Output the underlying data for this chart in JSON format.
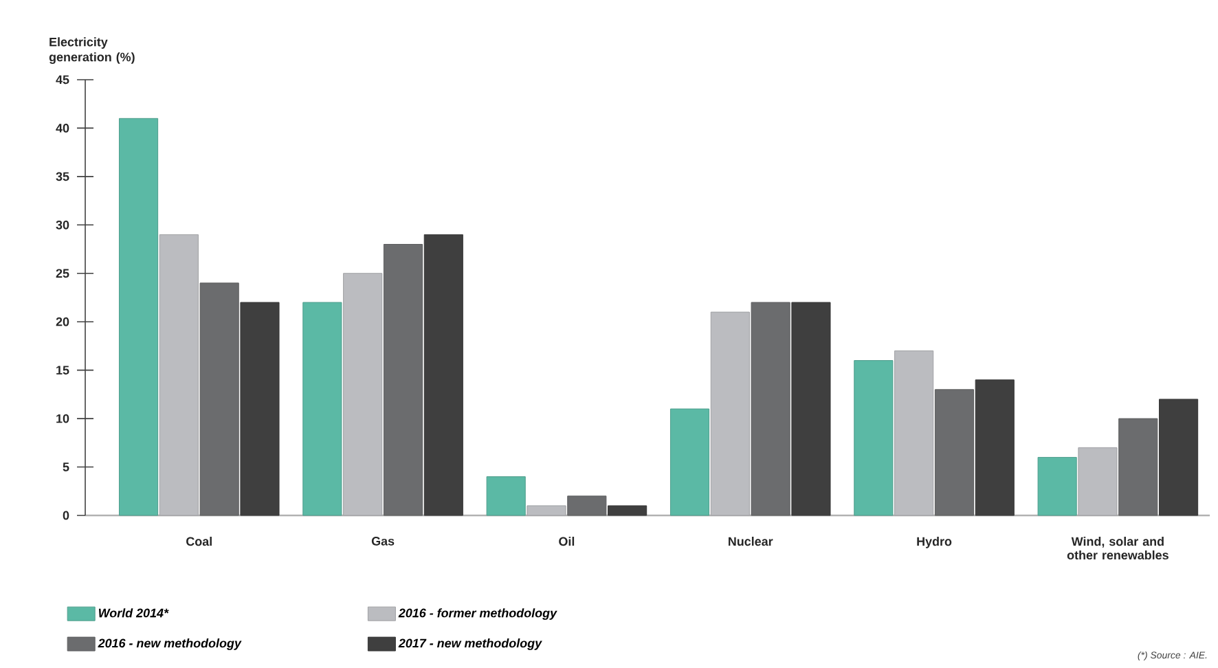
{
  "chart_data": {
    "type": "bar",
    "ylabel": "Electricity generation (%)",
    "categories": [
      "Coal",
      "Gas",
      "Oil",
      "Nuclear",
      "Hydro",
      "Wind, solar and other renewables"
    ],
    "series": [
      {
        "name": "World 2014*",
        "color": "#5bb9a5",
        "values": [
          41,
          22,
          4,
          11,
          16,
          6
        ]
      },
      {
        "name": "2016 - former methodology",
        "color": "#bbbcc0",
        "values": [
          29,
          25,
          1,
          21,
          17,
          7
        ]
      },
      {
        "name": "2016 - new methodology",
        "color": "#6b6c6e",
        "values": [
          24,
          28,
          2,
          22,
          13,
          10
        ]
      },
      {
        "name": "2017 - new methodology",
        "color": "#3f3f3f",
        "values": [
          22,
          29,
          1,
          22,
          14,
          12
        ]
      }
    ],
    "ylim": [
      0,
      45
    ],
    "yticks": [
      0,
      5,
      10,
      15,
      20,
      25,
      30,
      35,
      40,
      45
    ],
    "grid": false,
    "legend": "bottom",
    "annotations": [
      "(*) Source : AIE."
    ]
  }
}
